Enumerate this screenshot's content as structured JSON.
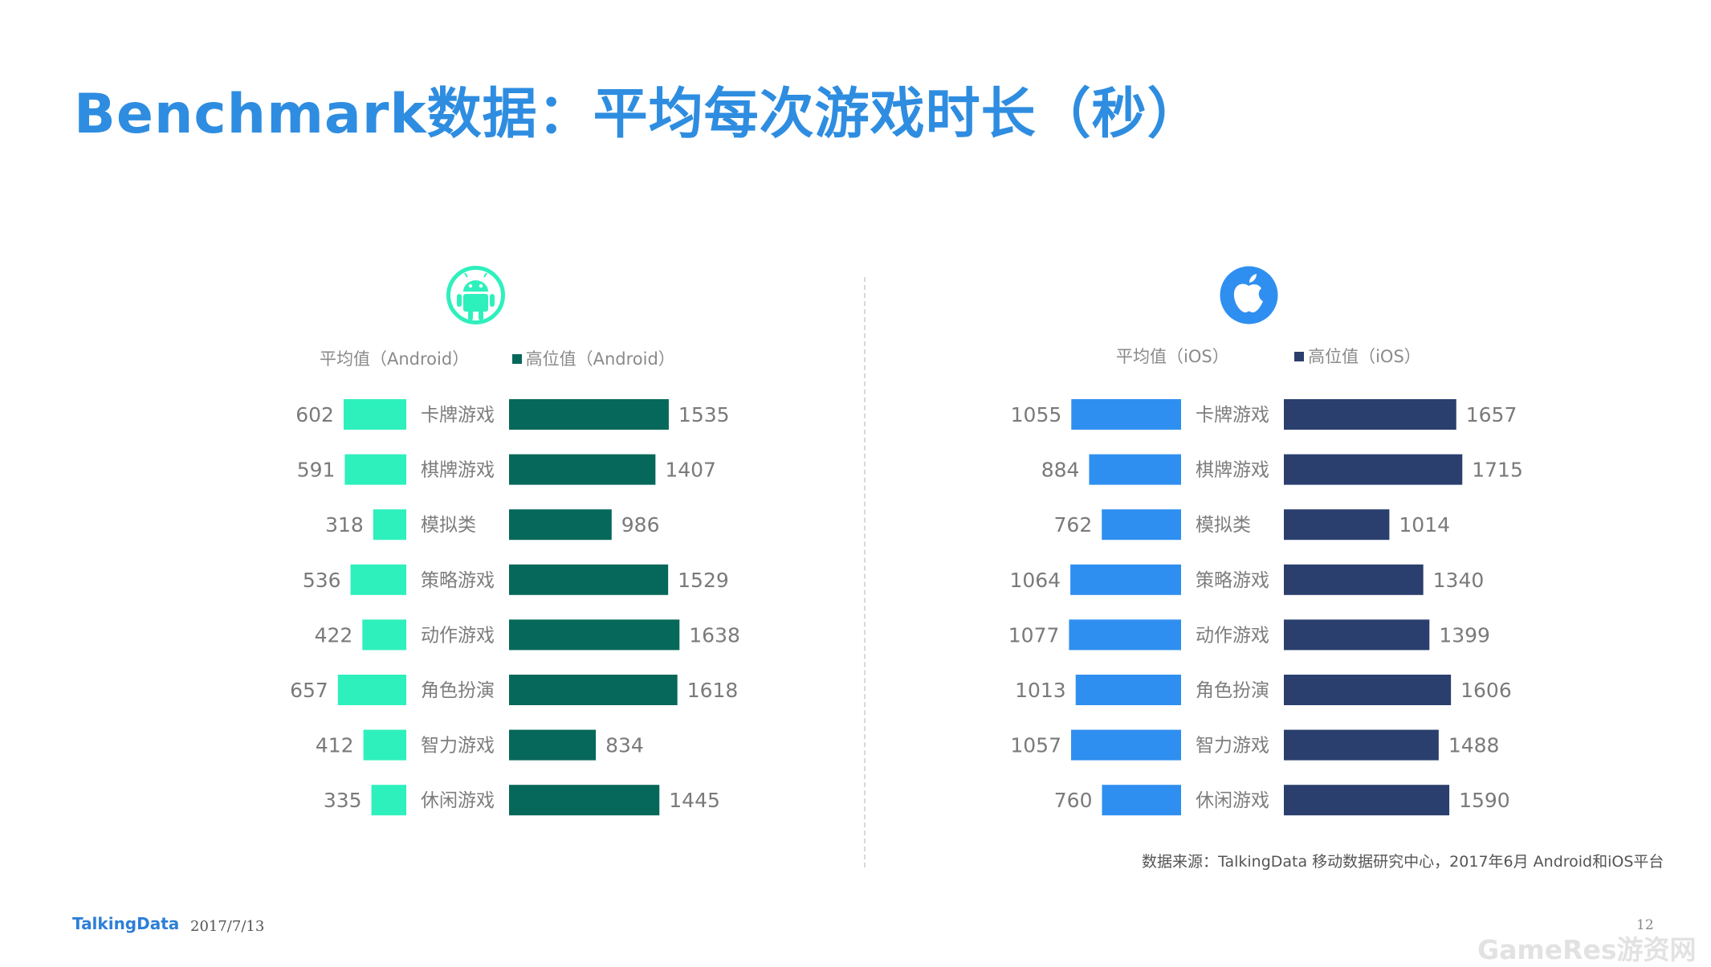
{
  "title": "Benchmark数据：平均每次游戏时长（秒）",
  "colors": {
    "title": "#2e8de0",
    "android_avg": "#2ef0bc",
    "android_high": "#06685a",
    "ios_avg": "#2f8ff0",
    "ios_high": "#2a3f6e"
  },
  "icons": {
    "android": "android-icon",
    "ios": "apple-icon"
  },
  "chart_data": [
    {
      "type": "bar",
      "platform": "android",
      "categories": [
        "卡牌游戏",
        "棋牌游戏",
        "模拟类",
        "策略游戏",
        "动作游戏",
        "角色扮演",
        "智力游戏",
        "休闲游戏"
      ],
      "series": [
        {
          "name": "平均值（Android）",
          "values": [
            602,
            591,
            318,
            536,
            422,
            657,
            412,
            335
          ]
        },
        {
          "name": "高位值（Android）",
          "values": [
            1535,
            1407,
            986,
            1529,
            1638,
            1618,
            834,
            1445
          ]
        }
      ],
      "legend_position": "top"
    },
    {
      "type": "bar",
      "platform": "ios",
      "categories": [
        "卡牌游戏",
        "棋牌游戏",
        "模拟类",
        "策略游戏",
        "动作游戏",
        "角色扮演",
        "智力游戏",
        "休闲游戏"
      ],
      "series": [
        {
          "name": "平均值（iOS）",
          "values": [
            1055,
            884,
            762,
            1064,
            1077,
            1013,
            1057,
            760
          ]
        },
        {
          "name": "高位值（iOS）",
          "values": [
            1657,
            1715,
            1014,
            1340,
            1399,
            1606,
            1488,
            1590
          ]
        }
      ],
      "legend_position": "top"
    }
  ],
  "source": "数据来源：TalkingData 移动数据研究中心，2017年6月 Android和iOS平台",
  "footer": {
    "logo": "TalkingData",
    "date": "2017/7/13",
    "page": "12"
  },
  "watermark": "GameRes游资网"
}
